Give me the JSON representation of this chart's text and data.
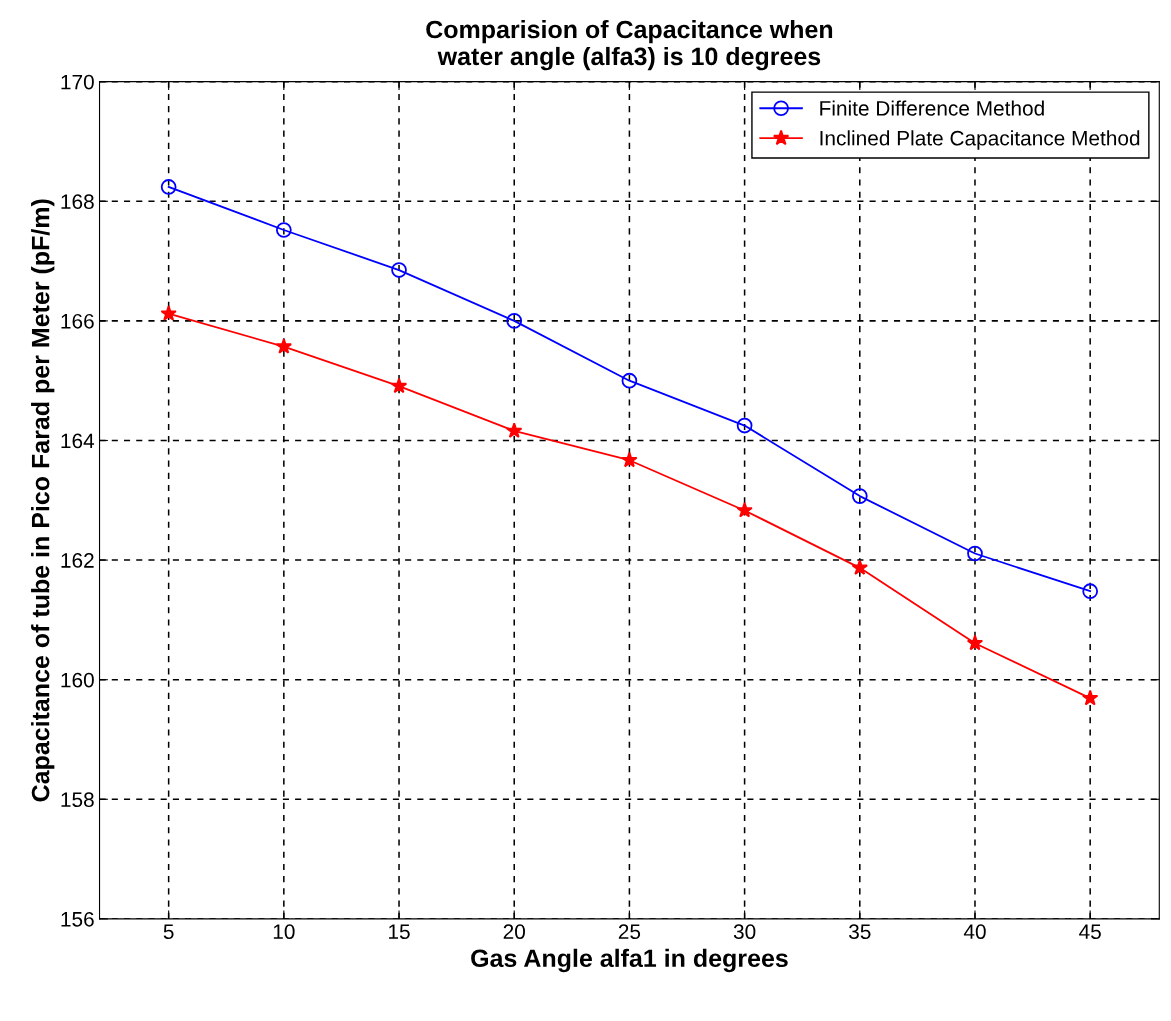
{
  "chart_data": {
    "type": "line",
    "title": "Comparision of Capacitance when\nwater angle (alfa3) is 10 degrees",
    "xlabel": "Gas Angle alfa1 in degrees",
    "ylabel": "Capacitance of tube in Pico Farad per Meter (pF/m)",
    "x": [
      5,
      10,
      15,
      20,
      25,
      30,
      35,
      40,
      45
    ],
    "series": [
      {
        "name": "Finite Difference Method",
        "color": "#0000ff",
        "marker": "circle",
        "values": [
          168.24,
          167.52,
          166.85,
          166.0,
          165.0,
          164.25,
          163.07,
          162.11,
          161.48
        ]
      },
      {
        "name": "Inclined Plate Capacitance Method",
        "color": "#ff0000",
        "marker": "star",
        "values": [
          166.12,
          165.57,
          164.91,
          164.16,
          163.67,
          162.83,
          161.87,
          160.61,
          159.69
        ]
      }
    ],
    "xlim": [
      2,
      48
    ],
    "xticks": [
      5,
      10,
      15,
      20,
      25,
      30,
      35,
      40,
      45
    ],
    "ylim": [
      156,
      170
    ],
    "yticks": [
      156,
      158,
      160,
      162,
      164,
      166,
      168,
      170
    ],
    "grid": true,
    "legend": "top right",
    "line_style": "solid"
  }
}
